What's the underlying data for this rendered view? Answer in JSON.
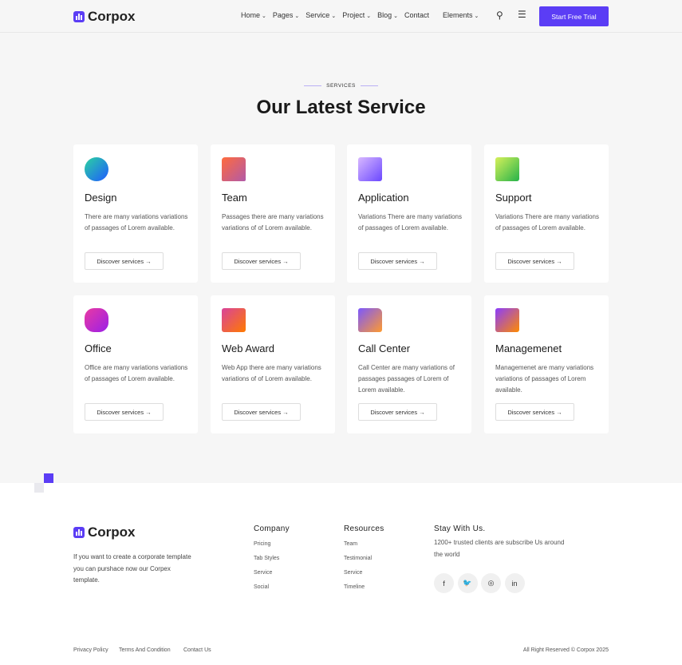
{
  "header": {
    "brand": "Corpox",
    "nav": [
      {
        "label": "Home",
        "dropdown": true
      },
      {
        "label": "Pages",
        "dropdown": true
      },
      {
        "label": "Service",
        "dropdown": true
      },
      {
        "label": "Project",
        "dropdown": true
      },
      {
        "label": "Blog",
        "dropdown": true
      },
      {
        "label": "Contact",
        "dropdown": false
      },
      {
        "label": "Elements",
        "dropdown": true
      }
    ],
    "cta": "Start Free Trial"
  },
  "section": {
    "eyebrow": "SERVICES",
    "title": "Our Latest Service"
  },
  "services": [
    {
      "title": "Design",
      "text": "There are many variations variations of passages of Lorem available.",
      "button": "Discover services",
      "icon": "design-icon",
      "colors": [
        "#1e5bff",
        "#2bd3a0"
      ]
    },
    {
      "title": "Team",
      "text": "Passages there are many variations variations of of Lorem available.",
      "button": "Discover services",
      "icon": "team-icon",
      "colors": [
        "#b25aa8",
        "#ff6b3d"
      ]
    },
    {
      "title": "Application",
      "text": "Variations There are many variations of passages of Lorem available.",
      "button": "Discover services",
      "icon": "application-icon",
      "colors": [
        "#6b48ff",
        "#d8b8ff"
      ]
    },
    {
      "title": "Support",
      "text": "Variations There are many variations of passages of Lorem available.",
      "button": "Discover services",
      "icon": "support-card-icon",
      "colors": [
        "#26b34a",
        "#d6f05a"
      ]
    },
    {
      "title": "Office",
      "text": "Office are many variations variations of passages of Lorem available.",
      "button": "Discover services",
      "icon": "office-gear-icon",
      "colors": [
        "#9b1fe8",
        "#e93aa3"
      ]
    },
    {
      "title": "Web Award",
      "text": "Web App there are many variations variations of of Lorem available.",
      "button": "Discover services",
      "icon": "web-award-icon",
      "colors": [
        "#ff7a00",
        "#d9439a"
      ]
    },
    {
      "title": "Call Center",
      "text": "Call Center are many variations of passages passages of Lorem of Lorem available.",
      "button": "Discover services",
      "icon": "call-center-folder-icon",
      "colors": [
        "#ff9a2e",
        "#7b58ff"
      ]
    },
    {
      "title": "Managemenet",
      "text": "Managemenet are many variations variations of passages of Lorem available.",
      "button": "Discover services",
      "icon": "management-calendar-icon",
      "colors": [
        "#ff8a00",
        "#8b3dff"
      ]
    }
  ],
  "footer": {
    "brand": "Corpox",
    "description": "If you want to create a corporate template you can purshace now our Corpex template.",
    "company": {
      "title": "Company",
      "links": [
        "Pricing",
        "Tab Styles",
        "Service",
        "Social"
      ]
    },
    "resources": {
      "title": "Resources",
      "links": [
        "Team",
        "Testimonial",
        "Service",
        "Timeline"
      ]
    },
    "stay": {
      "title": "Stay With Us.",
      "text": "1200+ trusted clients are subscribe Us around the world"
    },
    "social": [
      {
        "icon": "facebook-icon",
        "glyph": "f"
      },
      {
        "icon": "twitter-icon",
        "glyph": "🐦"
      },
      {
        "icon": "instagram-icon",
        "glyph": "◎"
      },
      {
        "icon": "linkedin-icon",
        "glyph": "in"
      }
    ],
    "bottom_links": [
      "Privacy Policy",
      "Terms And Condition",
      "Contact Us"
    ],
    "copyright": "All Right Reserved © Corpox 2025"
  },
  "colors": {
    "accent": "#5b3df5"
  }
}
